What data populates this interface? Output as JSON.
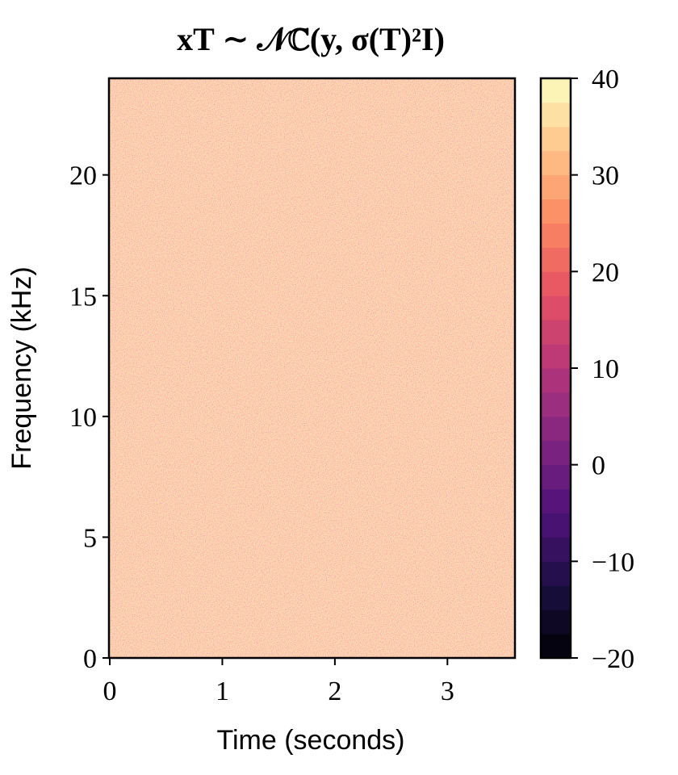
{
  "chart_data": {
    "type": "heatmap",
    "title": "xT ∼ 𝒩ℂ(y, σ(T)²I)",
    "xlabel": "Time (seconds)",
    "ylabel": "Frequency (kHz)",
    "xlim": [
      0,
      3.6
    ],
    "xticks": [
      0,
      1,
      2,
      3
    ],
    "ylim": [
      0,
      24
    ],
    "yticks": [
      0,
      5,
      10,
      15,
      20
    ],
    "colormap": "magma",
    "colorbar": {
      "lim": [
        -20,
        40
      ],
      "ticks": [
        {
          "value": -20,
          "label": "−20"
        },
        {
          "value": -10,
          "label": "−10"
        },
        0,
        10,
        20,
        30,
        40
      ]
    }
  }
}
